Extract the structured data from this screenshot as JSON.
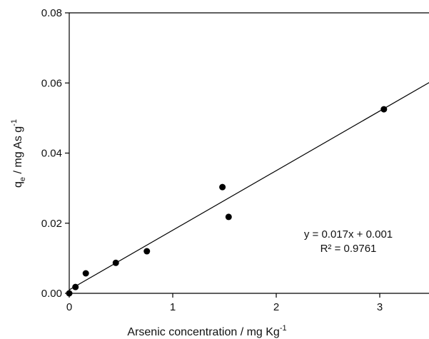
{
  "chart_data": {
    "type": "scatter",
    "xlabel": {
      "text": "Arsenic concentration / mg Kg",
      "sup": "-1"
    },
    "ylabel": {
      "text": "q",
      "sub": "e",
      "rest": " / mg As g",
      "sup": "-1"
    },
    "x": [
      0,
      0.06,
      0.16,
      0.45,
      0.75,
      1.48,
      1.54,
      3.04
    ],
    "values": [
      0,
      0.0018,
      0.0057,
      0.0087,
      0.012,
      0.0303,
      0.0218,
      0.0525
    ],
    "color": "#000000",
    "fit_line": {
      "x": [
        0,
        3.5
      ],
      "values": [
        0.001,
        0.0605
      ]
    },
    "annotations": [
      "y = 0.017x + 0.001",
      "R² = 0.9761"
    ],
    "xlim": [
      0,
      3.5
    ],
    "xticks": [
      0,
      1,
      2,
      3
    ],
    "ylim": [
      0,
      0.08
    ],
    "yticks": [
      {
        "value": 0,
        "label": "0.00"
      },
      {
        "value": 0.02,
        "label": "0.02"
      },
      {
        "value": 0.04,
        "label": "0.04"
      },
      {
        "value": 0.06,
        "label": "0.06"
      },
      {
        "value": 0.08,
        "label": "0.08"
      }
    ]
  }
}
